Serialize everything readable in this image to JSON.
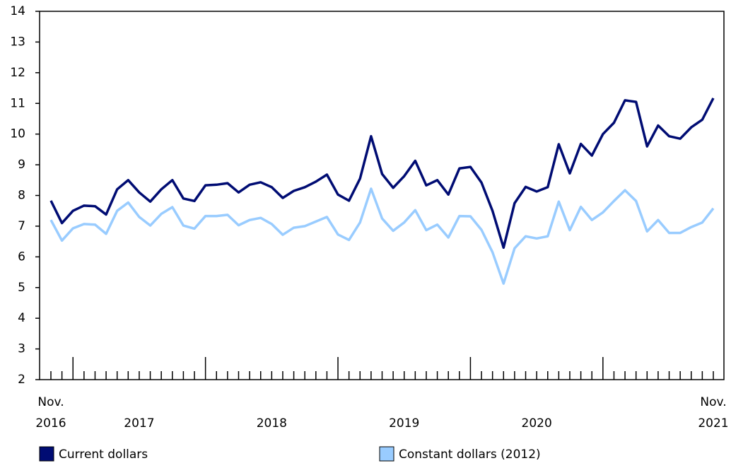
{
  "chart_data": {
    "type": "line",
    "x": [
      "2016-11",
      "2016-12",
      "2017-01",
      "2017-02",
      "2017-03",
      "2017-04",
      "2017-05",
      "2017-06",
      "2017-07",
      "2017-08",
      "2017-09",
      "2017-10",
      "2017-11",
      "2017-12",
      "2018-01",
      "2018-02",
      "2018-03",
      "2018-04",
      "2018-05",
      "2018-06",
      "2018-07",
      "2018-08",
      "2018-09",
      "2018-10",
      "2018-11",
      "2018-12",
      "2019-01",
      "2019-02",
      "2019-03",
      "2019-04",
      "2019-05",
      "2019-06",
      "2019-07",
      "2019-08",
      "2019-09",
      "2019-10",
      "2019-11",
      "2019-12",
      "2020-01",
      "2020-02",
      "2020-03",
      "2020-04",
      "2020-05",
      "2020-06",
      "2020-07",
      "2020-08",
      "2020-09",
      "2020-10",
      "2020-11",
      "2020-12",
      "2021-01",
      "2021-02",
      "2021-03",
      "2021-04",
      "2021-05",
      "2021-06",
      "2021-07",
      "2021-08",
      "2021-09",
      "2021-10",
      "2021-11"
    ],
    "x_labels": [
      {
        "month": "Nov.",
        "year": "2016"
      },
      {
        "year": "2017"
      },
      {
        "year": "2018"
      },
      {
        "year": "2019"
      },
      {
        "year": "2020"
      },
      {
        "month": "Nov.",
        "year": "2021"
      }
    ],
    "series": [
      {
        "name": "Current dollars",
        "color": "#000c73",
        "values": [
          7.83,
          7.1,
          7.5,
          7.67,
          7.65,
          7.38,
          8.2,
          8.5,
          8.1,
          7.8,
          8.2,
          8.5,
          7.9,
          7.82,
          8.33,
          8.35,
          8.4,
          8.1,
          8.35,
          8.43,
          8.27,
          7.92,
          8.15,
          8.27,
          8.45,
          8.68,
          8.03,
          7.83,
          8.55,
          9.93,
          8.7,
          8.25,
          8.63,
          9.13,
          8.33,
          8.5,
          8.03,
          8.88,
          8.93,
          8.42,
          7.5,
          6.3,
          7.75,
          8.28,
          8.13,
          8.27,
          9.67,
          8.72,
          9.68,
          9.3,
          10.0,
          10.37,
          11.1,
          11.05,
          9.6,
          10.28,
          9.93,
          9.85,
          10.22,
          10.47,
          11.17
        ]
      },
      {
        "name": "Constant dollars (2012)",
        "color": "#99ccff",
        "values": [
          7.2,
          6.53,
          6.93,
          7.07,
          7.05,
          6.75,
          7.5,
          7.77,
          7.3,
          7.02,
          7.4,
          7.62,
          7.02,
          6.92,
          7.33,
          7.33,
          7.37,
          7.03,
          7.2,
          7.27,
          7.07,
          6.72,
          6.95,
          7.0,
          7.15,
          7.3,
          6.73,
          6.55,
          7.12,
          8.22,
          7.25,
          6.85,
          7.12,
          7.52,
          6.87,
          7.05,
          6.63,
          7.33,
          7.32,
          6.88,
          6.15,
          5.13,
          6.28,
          6.67,
          6.6,
          6.67,
          7.8,
          6.87,
          7.63,
          7.2,
          7.45,
          7.82,
          8.17,
          7.82,
          6.83,
          7.2,
          6.78,
          6.78,
          6.97,
          7.12,
          7.58
        ]
      }
    ],
    "ylim": [
      2,
      14
    ],
    "yticks": [
      2,
      3,
      4,
      5,
      6,
      7,
      8,
      9,
      10,
      11,
      12,
      13,
      14
    ]
  }
}
